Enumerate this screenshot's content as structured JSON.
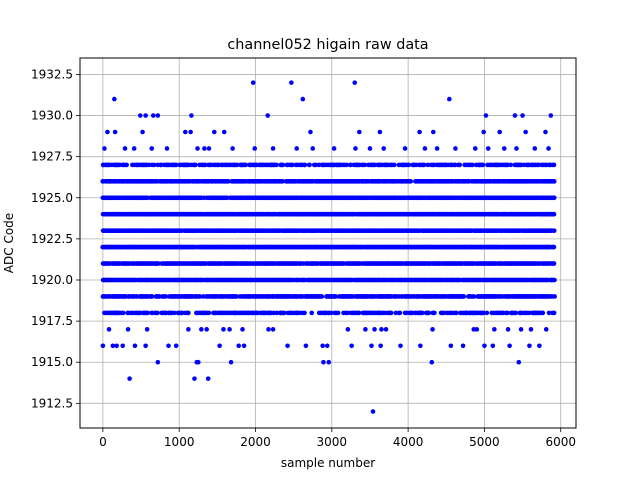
{
  "chart_data": {
    "type": "scatter",
    "title": "channel052 higain raw data",
    "xlabel": "sample number",
    "ylabel": "ADC Code",
    "xlim": [
      -300,
      6200
    ],
    "ylim": [
      1911.0,
      1933.5
    ],
    "xticks": [
      0,
      1000,
      2000,
      3000,
      4000,
      5000,
      6000
    ],
    "xtick_labels": [
      "0",
      "1000",
      "2000",
      "3000",
      "4000",
      "5000",
      "6000"
    ],
    "yticks": [
      1912.5,
      1915.0,
      1917.5,
      1920.0,
      1922.5,
      1925.0,
      1927.5,
      1930.0,
      1932.5
    ],
    "ytick_labels": [
      "1912.5",
      "1915.0",
      "1917.5",
      "1920.0",
      "1922.5",
      "1925.0",
      "1927.5",
      "1930.0",
      "1932.5"
    ],
    "grid": true,
    "marker_color": "#0000ff",
    "x_range": [
      0,
      5920
    ],
    "dense_levels": [
      1918,
      1919,
      1920,
      1921,
      1922,
      1923,
      1924,
      1925,
      1926,
      1927
    ],
    "level_fill_fraction": {
      "1918": 0.55,
      "1919": 0.8,
      "1920": 0.97,
      "1921": 0.92,
      "1922": 0.98,
      "1923": 0.98,
      "1924": 0.95,
      "1925": 0.9,
      "1926": 0.85,
      "1927": 0.6
    },
    "sparse_points": [
      [
        0,
        1916
      ],
      [
        130,
        1916
      ],
      [
        180,
        1916
      ],
      [
        260,
        1916
      ],
      [
        420,
        1916
      ],
      [
        560,
        1916
      ],
      [
        860,
        1916
      ],
      [
        960,
        1916
      ],
      [
        1530,
        1916
      ],
      [
        1780,
        1916
      ],
      [
        1850,
        1916
      ],
      [
        2420,
        1916
      ],
      [
        2660,
        1916
      ],
      [
        2880,
        1916
      ],
      [
        2940,
        1916
      ],
      [
        3260,
        1916
      ],
      [
        3520,
        1916
      ],
      [
        3640,
        1916
      ],
      [
        3900,
        1916
      ],
      [
        4160,
        1916
      ],
      [
        4560,
        1916
      ],
      [
        4720,
        1916
      ],
      [
        5000,
        1916
      ],
      [
        5110,
        1916
      ],
      [
        5330,
        1916
      ],
      [
        5590,
        1916
      ],
      [
        5720,
        1916
      ],
      [
        80,
        1917
      ],
      [
        330,
        1917
      ],
      [
        580,
        1917
      ],
      [
        1120,
        1917
      ],
      [
        1290,
        1917
      ],
      [
        1360,
        1917
      ],
      [
        1580,
        1917
      ],
      [
        1660,
        1917
      ],
      [
        1830,
        1917
      ],
      [
        2170,
        1917
      ],
      [
        2230,
        1917
      ],
      [
        3210,
        1917
      ],
      [
        3440,
        1917
      ],
      [
        3560,
        1917
      ],
      [
        3650,
        1917
      ],
      [
        3710,
        1917
      ],
      [
        4320,
        1917
      ],
      [
        4860,
        1917
      ],
      [
        4900,
        1917
      ],
      [
        5130,
        1917
      ],
      [
        5310,
        1917
      ],
      [
        5480,
        1917
      ],
      [
        5610,
        1917
      ],
      [
        5810,
        1917
      ],
      [
        720,
        1915
      ],
      [
        1230,
        1915
      ],
      [
        1250,
        1915
      ],
      [
        1680,
        1915
      ],
      [
        2890,
        1915
      ],
      [
        2960,
        1915
      ],
      [
        4310,
        1915
      ],
      [
        5450,
        1915
      ],
      [
        350,
        1914
      ],
      [
        1200,
        1914
      ],
      [
        1380,
        1914
      ],
      [
        3540,
        1912
      ],
      [
        60,
        1929
      ],
      [
        160,
        1929
      ],
      [
        520,
        1929
      ],
      [
        1080,
        1929
      ],
      [
        1150,
        1929
      ],
      [
        1460,
        1929
      ],
      [
        1590,
        1929
      ],
      [
        2720,
        1929
      ],
      [
        3360,
        1929
      ],
      [
        3630,
        1929
      ],
      [
        4150,
        1929
      ],
      [
        4330,
        1929
      ],
      [
        4990,
        1929
      ],
      [
        5200,
        1929
      ],
      [
        5540,
        1929
      ],
      [
        5800,
        1929
      ],
      [
        20,
        1928
      ],
      [
        290,
        1928
      ],
      [
        410,
        1928
      ],
      [
        640,
        1928
      ],
      [
        840,
        1928
      ],
      [
        1240,
        1928
      ],
      [
        1330,
        1928
      ],
      [
        1390,
        1928
      ],
      [
        1700,
        1928
      ],
      [
        1990,
        1928
      ],
      [
        2230,
        1928
      ],
      [
        2540,
        1928
      ],
      [
        2750,
        1928
      ],
      [
        3030,
        1928
      ],
      [
        3310,
        1928
      ],
      [
        3500,
        1928
      ],
      [
        3680,
        1928
      ],
      [
        3960,
        1928
      ],
      [
        4220,
        1928
      ],
      [
        4380,
        1928
      ],
      [
        4620,
        1928
      ],
      [
        4880,
        1928
      ],
      [
        5050,
        1928
      ],
      [
        5260,
        1928
      ],
      [
        5420,
        1928
      ],
      [
        5660,
        1928
      ],
      [
        5840,
        1928
      ],
      [
        490,
        1930
      ],
      [
        560,
        1930
      ],
      [
        660,
        1930
      ],
      [
        720,
        1930
      ],
      [
        1160,
        1930
      ],
      [
        2160,
        1930
      ],
      [
        5020,
        1930
      ],
      [
        5400,
        1930
      ],
      [
        5500,
        1930
      ],
      [
        5870,
        1930
      ],
      [
        150,
        1931
      ],
      [
        2620,
        1931
      ],
      [
        4540,
        1931
      ],
      [
        1970,
        1932
      ],
      [
        2470,
        1932
      ],
      [
        3300,
        1932
      ]
    ]
  }
}
